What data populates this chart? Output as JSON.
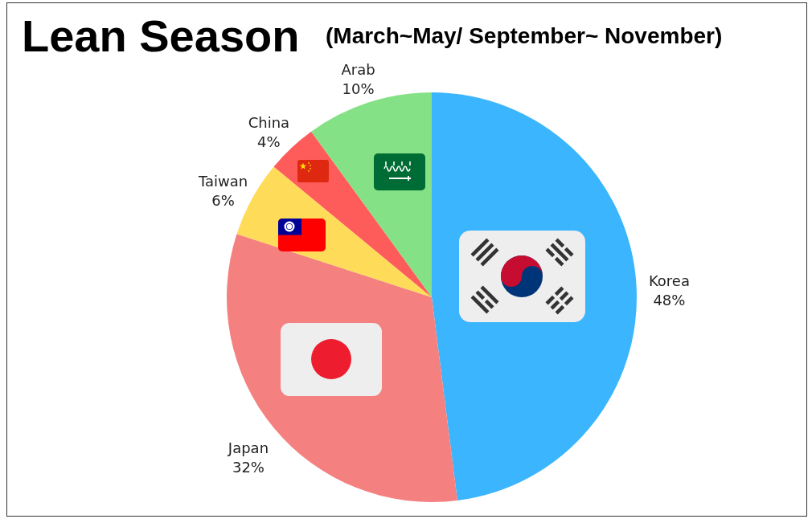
{
  "chart_data": {
    "type": "pie",
    "title": "Lean Season",
    "subtitle": "(March~May/ September~ November)",
    "categories": [
      "Korea",
      "Japan",
      "Taiwan",
      "China",
      "Arab"
    ],
    "values": [
      48,
      32,
      6,
      4,
      10
    ],
    "value_labels": [
      "48%",
      "32%",
      "6%",
      "4%",
      "10%"
    ],
    "colors": [
      "#3bb5fd",
      "#f48080",
      "#fedc5a",
      "#fe5b5b",
      "#85e185"
    ]
  }
}
